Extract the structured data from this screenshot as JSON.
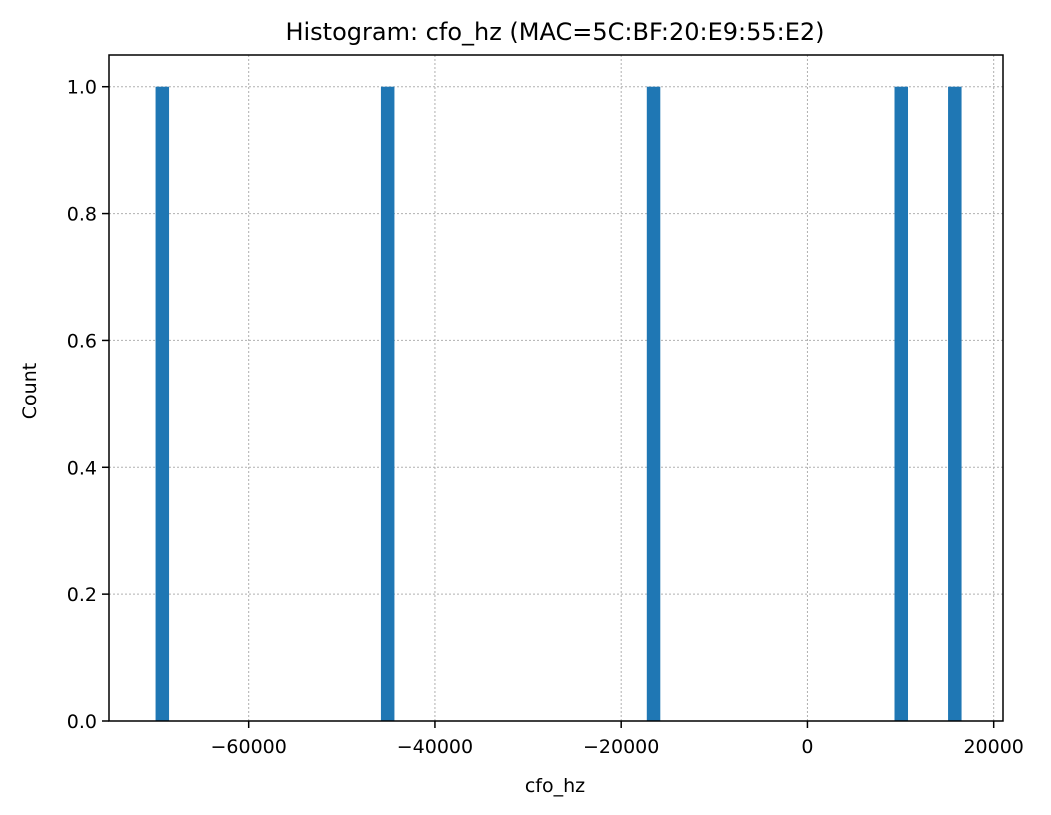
{
  "chart_data": {
    "type": "bar",
    "title": "Histogram: cfo_hz (MAC=5C:BF:20:E9:55:E2)",
    "xlabel": "cfo_hz",
    "ylabel": "Count",
    "xlim": [
      -75000,
      21000
    ],
    "ylim": [
      0,
      1.05
    ],
    "x_ticks": [
      -60000,
      -40000,
      -20000,
      0,
      20000
    ],
    "x_tick_labels": [
      "−60000",
      "−40000",
      "−20000",
      "0",
      "20000"
    ],
    "y_ticks": [
      0,
      0.2,
      0.4,
      0.6,
      0.8,
      1.0
    ],
    "y_tick_labels": [
      "0.0",
      "0.2",
      "0.4",
      "0.6",
      "0.8",
      "1.0"
    ],
    "grid": true,
    "bin_width": 1450,
    "bars": [
      {
        "x_start": -70000,
        "x_end": -68550,
        "count": 1
      },
      {
        "x_start": -45800,
        "x_end": -44350,
        "count": 1
      },
      {
        "x_start": -17250,
        "x_end": -15800,
        "count": 1
      },
      {
        "x_start": 9350,
        "x_end": 10800,
        "count": 1
      },
      {
        "x_start": 15100,
        "x_end": 16550,
        "count": 1
      }
    ],
    "bar_color": "#1f77b4"
  }
}
